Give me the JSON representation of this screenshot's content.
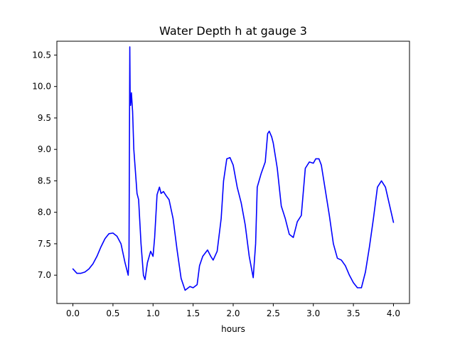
{
  "chart_data": {
    "type": "line",
    "title": "Water Depth h at gauge 3",
    "xlabel": "hours",
    "ylabel": "",
    "xlim": [
      -0.2,
      4.2
    ],
    "ylim": [
      6.55,
      10.72
    ],
    "xticks": [
      0.0,
      0.5,
      1.0,
      1.5,
      2.0,
      2.5,
      3.0,
      3.5,
      4.0
    ],
    "xtick_labels": [
      "0.0",
      "0.5",
      "1.0",
      "1.5",
      "2.0",
      "2.5",
      "3.0",
      "3.5",
      "4.0"
    ],
    "yticks": [
      7.0,
      7.5,
      8.0,
      8.5,
      9.0,
      9.5,
      10.0,
      10.5
    ],
    "ytick_labels": [
      "7.0",
      "7.5",
      "8.0",
      "8.5",
      "9.0",
      "9.5",
      "10.0",
      "10.5"
    ],
    "grid": false,
    "legend": "none",
    "series": [
      {
        "color": "#0000ff",
        "x": [
          0.0,
          0.05,
          0.1,
          0.15,
          0.2,
          0.25,
          0.3,
          0.35,
          0.4,
          0.45,
          0.5,
          0.55,
          0.6,
          0.65,
          0.69,
          0.7,
          0.71,
          0.715,
          0.72,
          0.73,
          0.745,
          0.76,
          0.8,
          0.82,
          0.85,
          0.88,
          0.9,
          0.93,
          0.97,
          1.0,
          1.02,
          1.05,
          1.08,
          1.1,
          1.13,
          1.16,
          1.2,
          1.25,
          1.3,
          1.35,
          1.4,
          1.43,
          1.46,
          1.5,
          1.55,
          1.58,
          1.62,
          1.68,
          1.72,
          1.75,
          1.8,
          1.85,
          1.88,
          1.92,
          1.96,
          2.0,
          2.05,
          2.1,
          2.15,
          2.2,
          2.25,
          2.28,
          2.3,
          2.35,
          2.4,
          2.43,
          2.45,
          2.48,
          2.5,
          2.55,
          2.6,
          2.65,
          2.7,
          2.75,
          2.8,
          2.85,
          2.9,
          2.95,
          3.0,
          3.03,
          3.07,
          3.1,
          3.15,
          3.2,
          3.25,
          3.3,
          3.35,
          3.4,
          3.45,
          3.5,
          3.55,
          3.6,
          3.65,
          3.7,
          3.75,
          3.8,
          3.85,
          3.9,
          4.0
        ],
        "y": [
          7.1,
          7.03,
          7.03,
          7.05,
          7.1,
          7.18,
          7.3,
          7.45,
          7.58,
          7.66,
          7.67,
          7.62,
          7.5,
          7.2,
          7.0,
          7.3,
          10.63,
          9.7,
          9.7,
          9.9,
          9.6,
          9.0,
          8.3,
          8.2,
          7.5,
          7.0,
          6.93,
          7.2,
          7.38,
          7.3,
          7.6,
          8.28,
          8.4,
          8.3,
          8.33,
          8.27,
          8.2,
          7.9,
          7.4,
          6.95,
          6.76,
          6.79,
          6.82,
          6.8,
          6.85,
          7.15,
          7.3,
          7.4,
          7.3,
          7.24,
          7.38,
          7.9,
          8.5,
          8.85,
          8.87,
          8.75,
          8.4,
          8.15,
          7.8,
          7.3,
          6.96,
          7.5,
          8.4,
          8.62,
          8.8,
          9.25,
          9.29,
          9.2,
          9.1,
          8.7,
          8.1,
          7.9,
          7.65,
          7.6,
          7.85,
          7.95,
          8.7,
          8.8,
          8.78,
          8.85,
          8.85,
          8.75,
          8.35,
          7.95,
          7.5,
          7.27,
          7.24,
          7.15,
          7.0,
          6.88,
          6.8,
          6.8,
          7.05,
          7.45,
          7.9,
          8.4,
          8.5,
          8.4,
          7.84
        ]
      }
    ]
  }
}
